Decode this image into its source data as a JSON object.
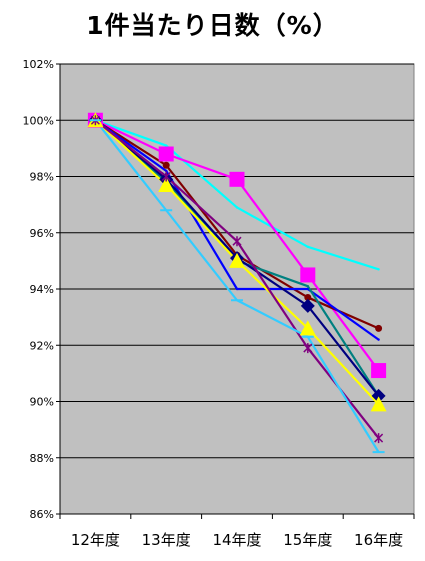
{
  "chart_data": {
    "type": "line",
    "title": "1件当たり日数（%）",
    "xlabel": "",
    "ylabel": "",
    "categories": [
      "12年度",
      "13年度",
      "14年度",
      "15年度",
      "16年度"
    ],
    "ylim": [
      86,
      102
    ],
    "y_ticks": [
      86,
      88,
      90,
      92,
      94,
      96,
      98,
      100,
      102
    ],
    "y_tick_labels": [
      "86%",
      "88%",
      "90%",
      "92%",
      "94%",
      "96%",
      "98%",
      "100%",
      "102%"
    ],
    "grid": "horizontal",
    "legend": "none",
    "plot_background": "#c0c0c0",
    "series": [
      {
        "color": "#00ffff",
        "marker": "none",
        "values": [
          100.0,
          99.1,
          96.9,
          95.5,
          94.7
        ]
      },
      {
        "color": "#ff00ff",
        "marker": "square",
        "values": [
          100.0,
          98.8,
          97.9,
          94.5,
          91.1
        ]
      },
      {
        "color": "#800000",
        "marker": "dot",
        "values": [
          100.0,
          98.4,
          95.2,
          93.7,
          92.6
        ]
      },
      {
        "color": "#0000ff",
        "marker": "none",
        "values": [
          100.0,
          98.2,
          94.0,
          94.0,
          92.2
        ]
      },
      {
        "color": "#008080",
        "marker": "none",
        "values": [
          100.0,
          97.8,
          95.0,
          94.1,
          90.2
        ]
      },
      {
        "color": "#000080",
        "marker": "diamond",
        "values": [
          100.0,
          97.9,
          95.1,
          93.4,
          90.2
        ]
      },
      {
        "color": "#ffff00",
        "marker": "triangle",
        "values": [
          100.0,
          97.7,
          95.0,
          92.6,
          89.9
        ]
      },
      {
        "color": "#800080",
        "marker": "star",
        "values": [
          100.0,
          98.0,
          95.7,
          91.9,
          88.7
        ]
      },
      {
        "color": "#33ccff",
        "marker": "dash",
        "values": [
          100.0,
          96.8,
          93.6,
          92.3,
          88.2
        ]
      }
    ]
  }
}
